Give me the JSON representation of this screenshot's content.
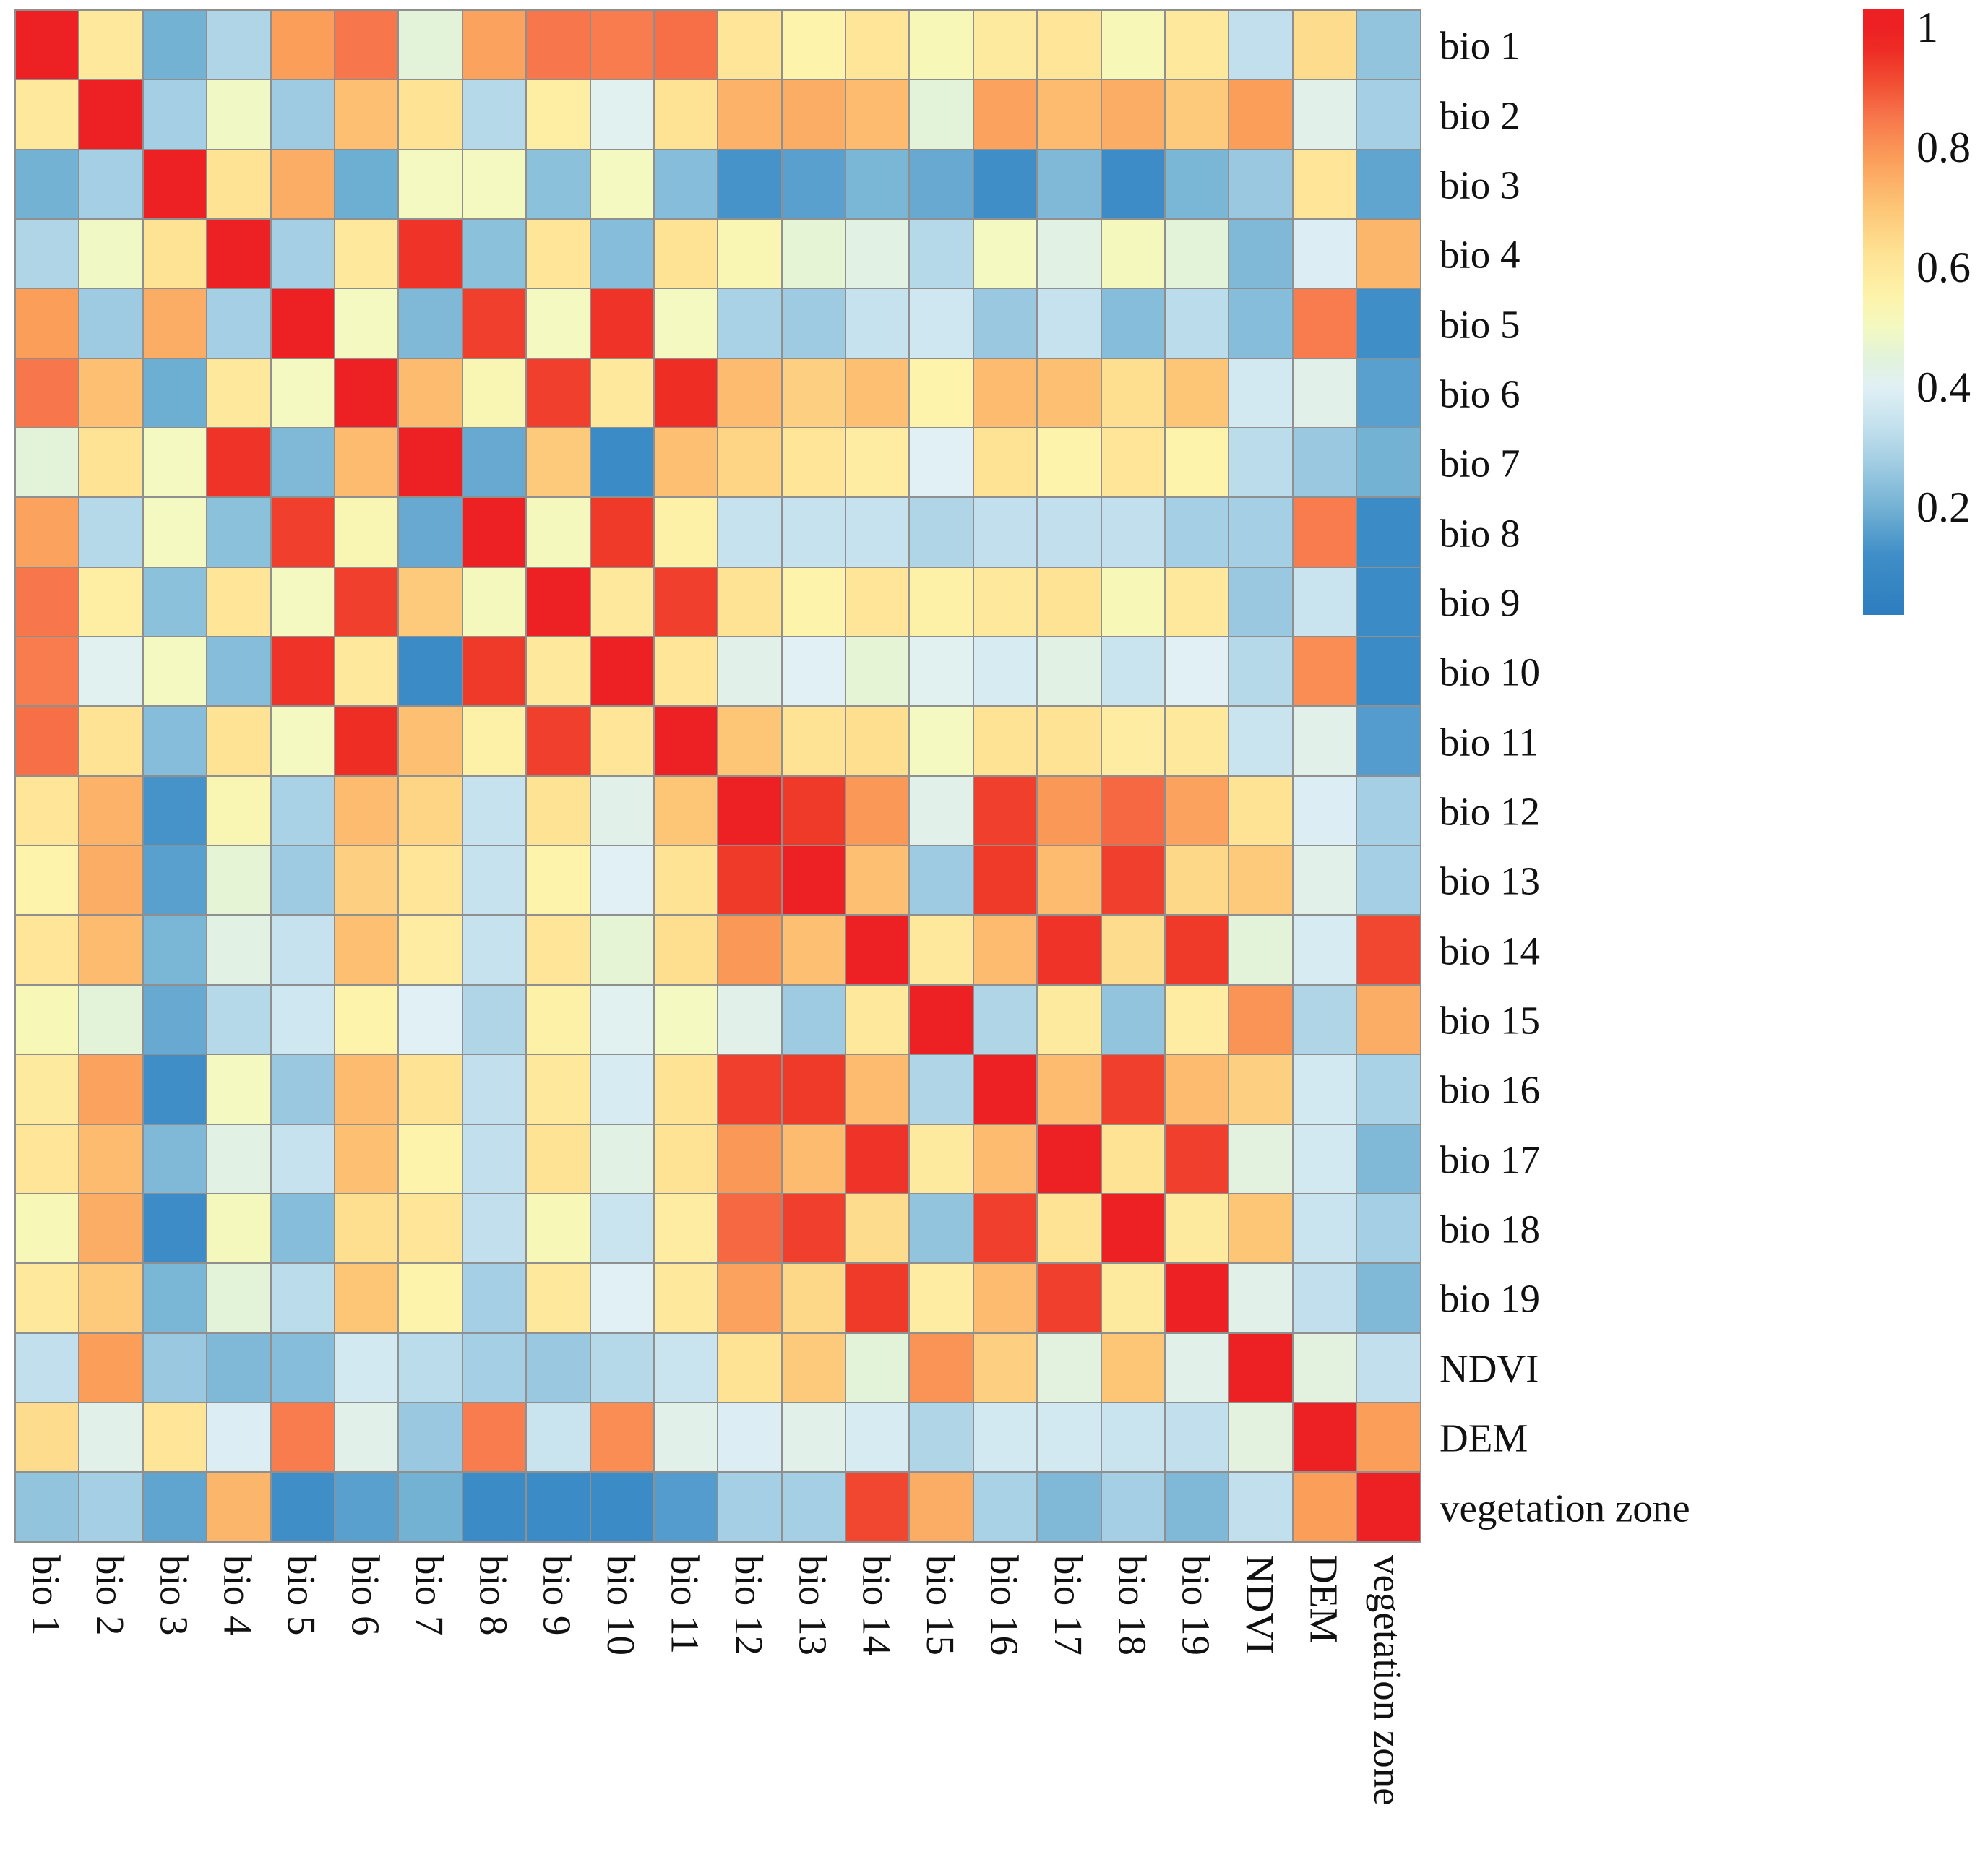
{
  "chart_data": {
    "type": "heatmap",
    "title": "",
    "description": "Correlation heatmap of bioclimatic variables (bio 1 - bio 19), NDVI, DEM and vegetation zone",
    "variables": [
      "bio 1",
      "bio 2",
      "bio 3",
      "bio 4",
      "bio 5",
      "bio 6",
      "bio 7",
      "bio 8",
      "bio 9",
      "bio 10",
      "bio 11",
      "bio 12",
      "bio 13",
      "bio 14",
      "bio 15",
      "bio 16",
      "bio 17",
      "bio 18",
      "bio 19",
      "NDVI",
      "DEM",
      "vegetation zone"
    ],
    "x_tick_labels": [
      "bio 1",
      "bio 2",
      "bio 3",
      "bio 4",
      "bio 5",
      "bio 6",
      "bio 7",
      "bio 8",
      "bio 9",
      "bio 10",
      "bio 11",
      "bio 12",
      "bio 13",
      "bio 14",
      "bio 15",
      "bio 16",
      "bio 17",
      "bio 18",
      "bio 19",
      "NDVI",
      "DEM",
      "vegetation zone"
    ],
    "y_tick_labels": [
      "bio 1",
      "bio 2",
      "bio 3",
      "bio 4",
      "bio 5",
      "bio 6",
      "bio 7",
      "bio 8",
      "bio 9",
      "bio 10",
      "bio 11",
      "bio 12",
      "bio 13",
      "bio 14",
      "bio 15",
      "bio 16",
      "bio 17",
      "bio 18",
      "bio 19",
      "NDVI",
      "DEM",
      "vegetation zone"
    ],
    "matrix": [
      [
        1.0,
        0.6,
        0.2,
        0.3,
        0.78,
        0.85,
        0.45,
        0.77,
        0.85,
        0.84,
        0.86,
        0.61,
        0.55,
        0.61,
        0.52,
        0.59,
        0.61,
        0.52,
        0.6,
        0.33,
        0.64,
        0.25
      ],
      [
        0.6,
        1.0,
        0.28,
        0.49,
        0.27,
        0.71,
        0.62,
        0.31,
        0.57,
        0.41,
        0.62,
        0.74,
        0.75,
        0.72,
        0.45,
        0.77,
        0.72,
        0.75,
        0.69,
        0.78,
        0.42,
        0.28
      ],
      [
        0.2,
        0.28,
        1.0,
        0.62,
        0.75,
        0.19,
        0.5,
        0.5,
        0.24,
        0.5,
        0.23,
        0.13,
        0.16,
        0.21,
        0.18,
        0.12,
        0.22,
        0.11,
        0.21,
        0.26,
        0.61,
        0.17
      ],
      [
        0.3,
        0.49,
        0.62,
        1.0,
        0.28,
        0.6,
        0.95,
        0.24,
        0.61,
        0.23,
        0.62,
        0.53,
        0.46,
        0.43,
        0.31,
        0.5,
        0.43,
        0.51,
        0.45,
        0.22,
        0.39,
        0.73
      ],
      [
        0.78,
        0.27,
        0.75,
        0.28,
        1.0,
        0.5,
        0.22,
        0.93,
        0.5,
        0.95,
        0.5,
        0.29,
        0.27,
        0.34,
        0.36,
        0.26,
        0.34,
        0.23,
        0.32,
        0.23,
        0.84,
        0.12
      ],
      [
        0.85,
        0.71,
        0.19,
        0.6,
        0.5,
        1.0,
        0.72,
        0.53,
        0.93,
        0.6,
        0.96,
        0.72,
        0.67,
        0.71,
        0.55,
        0.72,
        0.71,
        0.63,
        0.7,
        0.37,
        0.42,
        0.16
      ],
      [
        0.45,
        0.62,
        0.5,
        0.95,
        0.22,
        0.72,
        1.0,
        0.18,
        0.69,
        0.1,
        0.71,
        0.66,
        0.61,
        0.58,
        0.4,
        0.62,
        0.55,
        0.61,
        0.55,
        0.32,
        0.26,
        0.2
      ],
      [
        0.77,
        0.31,
        0.5,
        0.24,
        0.93,
        0.53,
        0.18,
        1.0,
        0.51,
        0.94,
        0.56,
        0.34,
        0.34,
        0.34,
        0.3,
        0.33,
        0.33,
        0.33,
        0.28,
        0.28,
        0.84,
        0.1
      ],
      [
        0.85,
        0.57,
        0.24,
        0.61,
        0.5,
        0.93,
        0.69,
        0.51,
        1.0,
        0.6,
        0.93,
        0.62,
        0.55,
        0.61,
        0.56,
        0.6,
        0.62,
        0.52,
        0.6,
        0.26,
        0.35,
        0.1
      ],
      [
        0.84,
        0.41,
        0.5,
        0.23,
        0.95,
        0.6,
        0.1,
        0.94,
        0.6,
        1.0,
        0.61,
        0.42,
        0.4,
        0.46,
        0.41,
        0.38,
        0.43,
        0.35,
        0.4,
        0.31,
        0.81,
        0.1
      ],
      [
        0.86,
        0.62,
        0.23,
        0.62,
        0.5,
        0.96,
        0.71,
        0.56,
        0.93,
        0.61,
        1.0,
        0.7,
        0.62,
        0.63,
        0.5,
        0.62,
        0.62,
        0.58,
        0.6,
        0.35,
        0.42,
        0.15
      ],
      [
        0.61,
        0.74,
        0.13,
        0.53,
        0.29,
        0.72,
        0.66,
        0.34,
        0.62,
        0.42,
        0.7,
        1.0,
        0.94,
        0.79,
        0.42,
        0.93,
        0.79,
        0.87,
        0.77,
        0.62,
        0.39,
        0.28
      ],
      [
        0.55,
        0.75,
        0.16,
        0.46,
        0.27,
        0.67,
        0.61,
        0.34,
        0.55,
        0.4,
        0.62,
        0.94,
        1.0,
        0.71,
        0.27,
        0.94,
        0.72,
        0.93,
        0.65,
        0.69,
        0.42,
        0.28
      ],
      [
        0.61,
        0.72,
        0.21,
        0.43,
        0.34,
        0.71,
        0.58,
        0.34,
        0.61,
        0.46,
        0.63,
        0.79,
        0.71,
        1.0,
        0.6,
        0.72,
        0.95,
        0.64,
        0.94,
        0.45,
        0.38,
        0.92
      ],
      [
        0.52,
        0.45,
        0.18,
        0.31,
        0.36,
        0.55,
        0.4,
        0.3,
        0.56,
        0.41,
        0.5,
        0.42,
        0.27,
        0.6,
        1.0,
        0.3,
        0.59,
        0.25,
        0.58,
        0.8,
        0.3,
        0.75
      ],
      [
        0.59,
        0.77,
        0.12,
        0.5,
        0.26,
        0.72,
        0.62,
        0.33,
        0.6,
        0.38,
        0.62,
        0.93,
        0.94,
        0.72,
        0.3,
        1.0,
        0.72,
        0.93,
        0.72,
        0.67,
        0.37,
        0.29
      ],
      [
        0.61,
        0.72,
        0.22,
        0.43,
        0.34,
        0.71,
        0.55,
        0.33,
        0.62,
        0.43,
        0.62,
        0.79,
        0.72,
        0.95,
        0.59,
        0.72,
        1.0,
        0.62,
        0.93,
        0.44,
        0.37,
        0.22
      ],
      [
        0.52,
        0.75,
        0.11,
        0.51,
        0.23,
        0.63,
        0.61,
        0.33,
        0.52,
        0.35,
        0.58,
        0.87,
        0.93,
        0.64,
        0.25,
        0.93,
        0.62,
        1.0,
        0.59,
        0.7,
        0.35,
        0.28
      ],
      [
        0.6,
        0.69,
        0.21,
        0.45,
        0.32,
        0.7,
        0.55,
        0.28,
        0.6,
        0.4,
        0.6,
        0.77,
        0.65,
        0.94,
        0.58,
        0.72,
        0.93,
        0.59,
        1.0,
        0.42,
        0.33,
        0.22
      ],
      [
        0.33,
        0.78,
        0.26,
        0.22,
        0.23,
        0.37,
        0.32,
        0.28,
        0.26,
        0.31,
        0.35,
        0.62,
        0.69,
        0.45,
        0.8,
        0.67,
        0.44,
        0.7,
        0.42,
        1.0,
        0.44,
        0.33
      ],
      [
        0.64,
        0.42,
        0.61,
        0.39,
        0.84,
        0.42,
        0.26,
        0.84,
        0.35,
        0.81,
        0.42,
        0.39,
        0.42,
        0.38,
        0.3,
        0.37,
        0.37,
        0.35,
        0.33,
        0.44,
        1.0,
        0.78
      ],
      [
        0.25,
        0.28,
        0.17,
        0.73,
        0.12,
        0.16,
        0.2,
        0.1,
        0.1,
        0.1,
        0.15,
        0.28,
        0.28,
        0.92,
        0.75,
        0.29,
        0.22,
        0.28,
        0.22,
        0.33,
        0.78,
        1.0
      ]
    ],
    "colorbar": {
      "position": "right",
      "ticks": [
        1,
        0.8,
        0.6,
        0.4,
        0.2
      ],
      "tick_labels": [
        "1",
        "0.8",
        "0.6",
        "0.4",
        "0.2"
      ],
      "vmin": 0.02,
      "vmax": 1.03
    },
    "colormap": {
      "name": "red-yellow-green-blue (spectral-like)",
      "anchors": [
        [
          0.02,
          "#2d7dbf"
        ],
        [
          0.12,
          "#3f8ec8"
        ],
        [
          0.2,
          "#74b2d4"
        ],
        [
          0.28,
          "#a5cfe4"
        ],
        [
          0.34,
          "#c6e2ee"
        ],
        [
          0.4,
          "#e0f0f5"
        ],
        [
          0.45,
          "#e2f3da"
        ],
        [
          0.5,
          "#f3f9c0"
        ],
        [
          0.55,
          "#fdf3ab"
        ],
        [
          0.62,
          "#fee394"
        ],
        [
          0.7,
          "#fdc576"
        ],
        [
          0.78,
          "#fb9e5a"
        ],
        [
          0.85,
          "#f7764b"
        ],
        [
          0.9,
          "#f25335"
        ],
        [
          0.96,
          "#ee2d25"
        ],
        [
          1.0,
          "#ed2024"
        ]
      ]
    },
    "grid_line_color": "#8f8f8f",
    "legend_position": "right"
  }
}
